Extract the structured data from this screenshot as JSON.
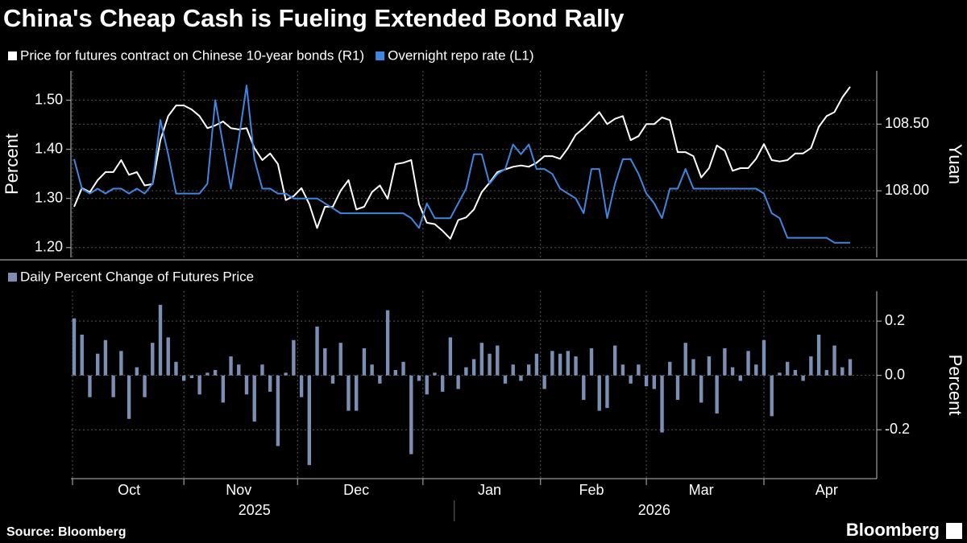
{
  "title": "China's Cheap Cash is Fueling Extended Bond Rally",
  "source": "Source: Bloomberg",
  "logo": "Bloomberg",
  "chart_data": [
    {
      "type": "line",
      "ylabel": "Percent",
      "y2label": "Yuan",
      "ylim": [
        1.18,
        1.56
      ],
      "yticks": [
        {
          "value": 1.2,
          "label": "1.20"
        },
        {
          "value": 1.3,
          "label": "1.30"
        },
        {
          "value": 1.4,
          "label": "1.40"
        },
        {
          "value": 1.5,
          "label": "1.50"
        }
      ],
      "y2lim": [
        107.5,
        108.9
      ],
      "y2ticks": [
        {
          "value": 108.0,
          "label": "108.00"
        },
        {
          "value": 108.5,
          "label": "108.50"
        }
      ],
      "grid": true,
      "series": [
        {
          "name": "Price for futures contract on Chinese 10-year bonds (R1)",
          "color": "#ffffff",
          "axis": "y2",
          "values": [
            107.88,
            108.02,
            107.99,
            108.08,
            108.14,
            108.14,
            108.23,
            108.12,
            108.14,
            108.04,
            108.05,
            108.38,
            108.56,
            108.64,
            108.64,
            108.61,
            108.56,
            108.47,
            108.49,
            108.52,
            108.47,
            108.46,
            108.47,
            108.32,
            108.23,
            108.28,
            108.2,
            107.93,
            107.96,
            108.02,
            107.9,
            107.72,
            107.88,
            107.88,
            108.0,
            108.08,
            107.86,
            107.88,
            107.99,
            108.04,
            107.94,
            108.2,
            108.21,
            108.23,
            107.9,
            107.76,
            107.75,
            107.7,
            107.64,
            107.78,
            107.8,
            107.86,
            107.99,
            108.06,
            108.14,
            108.16,
            108.18,
            108.19,
            108.18,
            108.21,
            108.26,
            108.26,
            108.24,
            108.32,
            108.42,
            108.47,
            108.53,
            108.59,
            108.5,
            108.54,
            108.56,
            108.38,
            108.41,
            108.5,
            108.5,
            108.55,
            108.53,
            108.29,
            108.29,
            108.26,
            108.1,
            108.17,
            108.34,
            108.3,
            108.15,
            108.17,
            108.17,
            108.24,
            108.35,
            108.23,
            108.22,
            108.23,
            108.28,
            108.28,
            108.32,
            108.48,
            108.56,
            108.59,
            108.7,
            108.78
          ]
        },
        {
          "name": "Overnight repo rate (L1)",
          "color": "#3f86e0",
          "values": [
            1.38,
            1.32,
            1.31,
            1.32,
            1.31,
            1.32,
            1.32,
            1.31,
            1.32,
            1.31,
            1.33,
            1.46,
            1.39,
            1.31,
            1.31,
            1.31,
            1.31,
            1.33,
            1.5,
            1.41,
            1.32,
            1.42,
            1.53,
            1.38,
            1.32,
            1.32,
            1.31,
            1.31,
            1.3,
            1.3,
            1.3,
            1.3,
            1.29,
            1.28,
            1.27,
            1.27,
            1.27,
            1.27,
            1.27,
            1.27,
            1.27,
            1.27,
            1.27,
            1.26,
            1.24,
            1.29,
            1.26,
            1.26,
            1.26,
            1.29,
            1.32,
            1.39,
            1.39,
            1.33,
            1.35,
            1.36,
            1.41,
            1.39,
            1.41,
            1.36,
            1.36,
            1.35,
            1.32,
            1.31,
            1.3,
            1.27,
            1.36,
            1.36,
            1.26,
            1.33,
            1.38,
            1.38,
            1.35,
            1.31,
            1.29,
            1.26,
            1.32,
            1.32,
            1.36,
            1.32,
            1.32,
            1.32,
            1.32,
            1.32,
            1.32,
            1.32,
            1.32,
            1.32,
            1.31,
            1.27,
            1.26,
            1.22,
            1.22,
            1.22,
            1.22,
            1.22,
            1.22,
            1.21,
            1.21,
            1.21
          ]
        }
      ]
    },
    {
      "type": "bar",
      "ylabel": "Percent",
      "ylim": [
        -0.38,
        0.31
      ],
      "yticks": [
        -0.2,
        {
          "value": 0,
          "label": "0.0"
        },
        0.2
      ],
      "grid": true,
      "categories": [
        null,
        null,
        null,
        null,
        null,
        null,
        null,
        "Oct",
        null,
        null,
        null,
        null,
        null,
        null,
        null,
        null,
        null,
        null,
        null,
        null,
        null,
        "Nov",
        null,
        null,
        null,
        null,
        null,
        null,
        null,
        null,
        null,
        null,
        null,
        null,
        null,
        null,
        "Dec",
        null,
        null,
        null,
        null,
        null,
        null,
        null,
        null,
        null,
        null,
        null,
        null,
        null,
        null,
        null,
        null,
        "Jan",
        null,
        null,
        null,
        null,
        null,
        null,
        null,
        null,
        null,
        null,
        null,
        null,
        "Feb",
        null,
        null,
        null,
        null,
        null,
        null,
        null,
        null,
        null,
        null,
        null,
        null,
        null,
        "Mar",
        null,
        null,
        null,
        null,
        null,
        null,
        null,
        null,
        null,
        null,
        null,
        null,
        null,
        null,
        null,
        "Apr",
        null,
        null,
        null
      ],
      "year_categories": [
        null,
        null,
        null,
        null,
        null,
        null,
        null,
        null,
        null,
        null,
        null,
        null,
        null,
        null,
        null,
        null,
        null,
        null,
        null,
        null,
        null,
        null,
        null,
        "2025",
        null,
        null,
        null,
        null,
        null,
        null,
        null,
        null,
        null,
        null,
        null,
        null,
        null,
        null,
        null,
        null,
        null,
        null,
        null,
        null,
        null,
        null,
        null,
        null,
        null,
        null,
        null,
        null,
        null,
        null,
        null,
        null,
        null,
        null,
        null,
        null,
        null,
        null,
        null,
        null,
        null,
        null,
        null,
        null,
        null,
        null,
        null,
        null,
        null,
        null,
        "2026",
        null,
        null,
        null,
        null,
        null,
        null,
        null,
        null,
        null,
        null,
        null,
        null,
        null,
        null,
        null,
        null,
        null,
        null,
        null,
        null,
        null,
        null,
        null,
        null,
        null
      ],
      "series": [
        {
          "name": "Daily Percent Change of Futures Price",
          "color": "#7b8fb5",
          "values": [
            0.21,
            0.15,
            -0.08,
            0.08,
            0.13,
            -0.08,
            0.09,
            -0.16,
            0.03,
            -0.08,
            0.12,
            0.26,
            0.14,
            0.05,
            -0.02,
            -0.01,
            -0.07,
            0.01,
            0.02,
            -0.1,
            0.07,
            0.04,
            -0.07,
            -0.17,
            0.04,
            -0.06,
            -0.26,
            0.01,
            0.13,
            -0.08,
            -0.33,
            0.18,
            0.1,
            -0.03,
            0.12,
            -0.13,
            -0.13,
            0.1,
            0.04,
            -0.03,
            0.24,
            0.02,
            0.05,
            -0.29,
            -0.02,
            -0.07,
            0.01,
            -0.06,
            0.14,
            -0.05,
            0.03,
            0.06,
            0.12,
            0.08,
            0.11,
            -0.03,
            0.04,
            -0.02,
            0.04,
            0.08,
            -0.05,
            0.09,
            0.08,
            0.09,
            0.07,
            -0.09,
            0.1,
            -0.13,
            -0.12,
            0.11,
            0.04,
            -0.03,
            0.04,
            -0.04,
            -0.05,
            -0.21,
            0.05,
            -0.09,
            0.12,
            0.06,
            -0.1,
            0.07,
            -0.14,
            0.1,
            0.03,
            -0.02,
            0.09,
            0.04,
            0.13,
            -0.15,
            0.01,
            0.05,
            0.02,
            -0.02,
            0.07,
            0.15,
            0.02,
            0.11,
            0.03,
            0.06
          ]
        }
      ]
    }
  ]
}
